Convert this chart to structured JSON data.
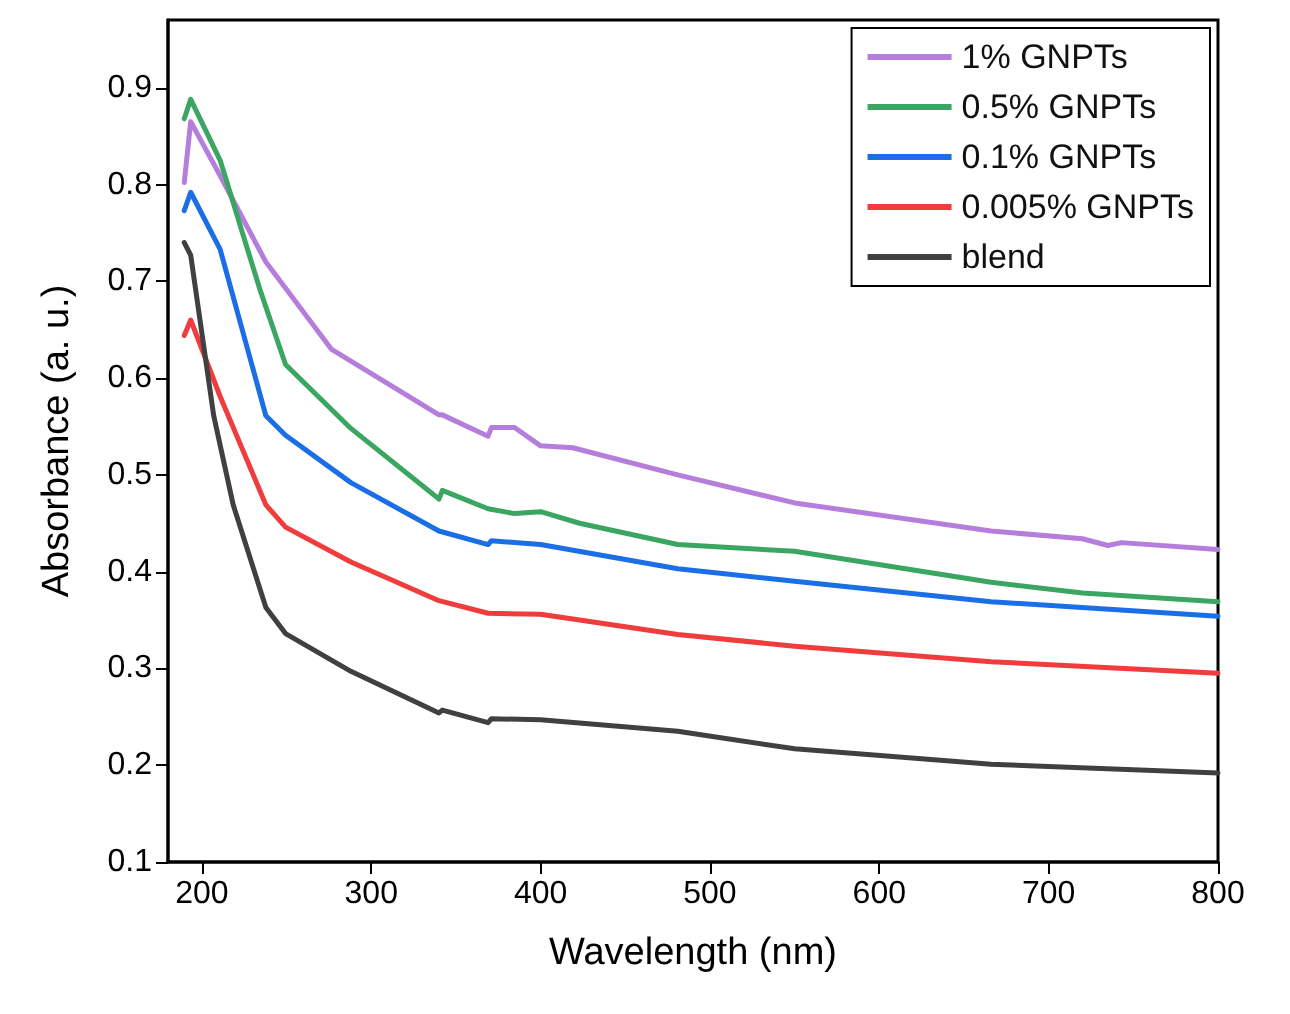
{
  "chart_data": {
    "type": "line",
    "xlabel": "Wavelength (nm)",
    "ylabel": "Absorbance (a. u.)",
    "xlim": [
      180,
      800
    ],
    "ylim": [
      0.1,
      0.97
    ],
    "xticks": [
      200,
      300,
      400,
      500,
      600,
      700,
      800
    ],
    "yticks": [
      0.1,
      0.2,
      0.3,
      0.4,
      0.5,
      0.6,
      0.7,
      0.8,
      0.9
    ],
    "grid": false,
    "legend": "top right",
    "marker": "none",
    "line_style": "solid",
    "series": [
      {
        "name": "1% GNPTs",
        "color": "#b57edc",
        "x": [
          189.6,
          193.4,
          210.8,
          237.8,
          276.4,
          340,
          342,
          369,
          371,
          384.6,
          400,
          419,
          481,
          550,
          666,
          720,
          735,
          743,
          800
        ],
        "values": [
          0.802,
          0.865,
          0.809,
          0.72,
          0.63,
          0.562,
          0.562,
          0.54,
          0.549,
          0.549,
          0.53,
          0.528,
          0.5,
          0.471,
          0.442,
          0.434,
          0.427,
          0.43,
          0.423
        ]
      },
      {
        "name": "0.5% GNPTs",
        "color": "#3aa661",
        "x": [
          189.6,
          193.4,
          210.8,
          234,
          249.4,
          288,
          340,
          342,
          369,
          384.6,
          400,
          423,
          481,
          550,
          666,
          720,
          800
        ],
        "values": [
          0.868,
          0.888,
          0.825,
          0.693,
          0.614,
          0.548,
          0.475,
          0.484,
          0.465,
          0.46,
          0.462,
          0.45,
          0.428,
          0.421,
          0.389,
          0.378,
          0.369
        ]
      },
      {
        "name": "0.1% GNPTs",
        "color": "#1a6ee6",
        "x": [
          189.6,
          193.4,
          210.8,
          237.8,
          249.4,
          288,
          340,
          369,
          371,
          400,
          481,
          550,
          666,
          800
        ],
        "values": [
          0.773,
          0.792,
          0.733,
          0.561,
          0.541,
          0.492,
          0.442,
          0.428,
          0.432,
          0.428,
          0.403,
          0.39,
          0.369,
          0.354
        ]
      },
      {
        "name": "0.005% GNPTs",
        "color": "#f03c3c",
        "x": [
          189.6,
          193.4,
          210.8,
          237.8,
          249.4,
          288,
          340,
          369,
          400,
          481,
          550,
          666,
          800
        ],
        "values": [
          0.644,
          0.66,
          0.581,
          0.469,
          0.446,
          0.41,
          0.37,
          0.357,
          0.356,
          0.335,
          0.323,
          0.307,
          0.295
        ]
      },
      {
        "name": "blend",
        "color": "#404040",
        "x": [
          189.6,
          193.4,
          207,
          218.5,
          237.8,
          249.4,
          288,
          340,
          342,
          369,
          371,
          400,
          481,
          550,
          666,
          800
        ],
        "values": [
          0.74,
          0.727,
          0.561,
          0.469,
          0.363,
          0.336,
          0.297,
          0.254,
          0.257,
          0.244,
          0.248,
          0.247,
          0.235,
          0.217,
          0.201,
          0.192
        ]
      }
    ]
  }
}
